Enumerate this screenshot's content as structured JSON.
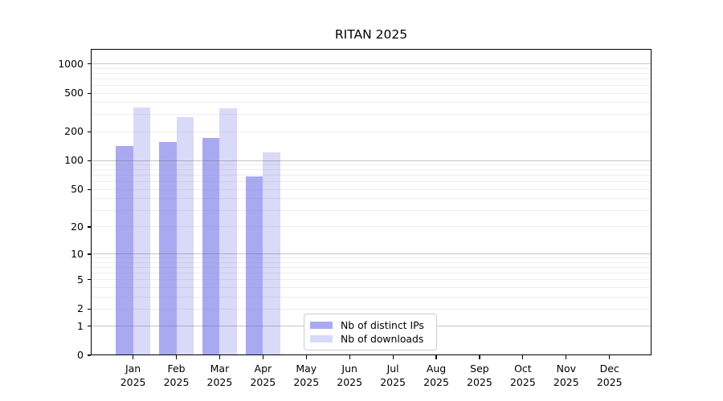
{
  "chart_data": {
    "type": "bar",
    "title": "RITAN 2025",
    "x": {
      "categories": [
        "Jan",
        "Feb",
        "Mar",
        "Apr",
        "May",
        "Jun",
        "Jul",
        "Aug",
        "Sep",
        "Oct",
        "Nov",
        "Dec"
      ],
      "year_label": "2025"
    },
    "y": {
      "scale": "symlog",
      "tick_values": [
        0,
        1,
        2,
        5,
        10,
        20,
        50,
        100,
        200,
        500,
        1000
      ],
      "minor_grid_values": [
        2,
        3,
        4,
        5,
        6,
        7,
        8,
        9,
        20,
        30,
        40,
        50,
        60,
        70,
        80,
        90,
        200,
        300,
        400,
        500,
        600,
        700,
        800,
        900
      ],
      "major_grid_values": [
        1,
        10,
        100,
        1000
      ],
      "grid": "on"
    },
    "series": [
      {
        "name": "Nb of distinct IPs",
        "color": "#a9a9f2",
        "values": [
          143,
          157,
          174,
          69,
          null,
          null,
          null,
          null,
          null,
          null,
          null,
          null
        ]
      },
      {
        "name": "Nb of downloads",
        "color": "#d9d9f8",
        "values": [
          357,
          285,
          350,
          123,
          null,
          null,
          null,
          null,
          null,
          null,
          null,
          null
        ]
      }
    ],
    "legend_position": "inside-bottom-center"
  }
}
